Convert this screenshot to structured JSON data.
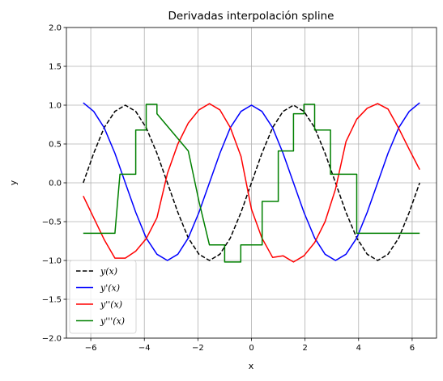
{
  "chart_data": {
    "type": "line",
    "title": "Derivadas interpolación spline",
    "xlabel": "x",
    "ylabel": "y",
    "xlim": [
      -6.91,
      6.91
    ],
    "ylim": [
      -2.0,
      2.0
    ],
    "xticks": [
      -6,
      -4,
      -2,
      0,
      2,
      4,
      6
    ],
    "xtick_labels": [
      "−6",
      "−4",
      "−2",
      "0",
      "2",
      "4",
      "6"
    ],
    "yticks": [
      -2.0,
      -1.5,
      -1.0,
      -0.5,
      0.0,
      0.5,
      1.0,
      1.5,
      2.0
    ],
    "ytick_labels": [
      "−2.0",
      "−1.5",
      "−1.0",
      "−0.5",
      "0.0",
      "0.5",
      "1.0",
      "1.5",
      "2.0"
    ],
    "grid": true,
    "legend_position": "lower-left",
    "series": [
      {
        "name": "y(x)",
        "color": "#000000",
        "dash": "dashed",
        "x": [
          -6.28,
          -5.89,
          -5.5,
          -5.1,
          -4.71,
          -4.32,
          -3.93,
          -3.53,
          -3.14,
          -2.75,
          -2.36,
          -1.96,
          -1.57,
          -1.18,
          -0.79,
          -0.39,
          0.0,
          0.39,
          0.79,
          1.18,
          1.57,
          1.96,
          2.36,
          2.75,
          3.14,
          3.53,
          3.93,
          4.32,
          4.71,
          5.1,
          5.5,
          5.89,
          6.28
        ],
        "y": [
          0.0,
          0.38,
          0.71,
          0.92,
          1.0,
          0.92,
          0.71,
          0.38,
          0.0,
          -0.38,
          -0.71,
          -0.92,
          -1.0,
          -0.92,
          -0.71,
          -0.38,
          0.0,
          0.38,
          0.71,
          0.92,
          1.0,
          0.92,
          0.71,
          0.38,
          0.0,
          -0.38,
          -0.71,
          -0.92,
          -1.0,
          -0.92,
          -0.71,
          -0.38,
          0.0
        ]
      },
      {
        "name": "y'(x)",
        "color": "#0000ff",
        "dash": "solid",
        "x": [
          -6.28,
          -5.89,
          -5.5,
          -5.1,
          -4.71,
          -4.32,
          -3.93,
          -3.53,
          -3.14,
          -2.75,
          -2.36,
          -1.96,
          -1.57,
          -1.18,
          -0.79,
          -0.39,
          0.0,
          0.39,
          0.79,
          1.18,
          1.57,
          1.96,
          2.36,
          2.75,
          3.14,
          3.53,
          3.93,
          4.32,
          4.71,
          5.1,
          5.5,
          5.89,
          6.28
        ],
        "y": [
          1.03,
          0.92,
          0.71,
          0.38,
          0.0,
          -0.38,
          -0.71,
          -0.92,
          -1.0,
          -0.92,
          -0.71,
          -0.38,
          0.0,
          0.38,
          0.71,
          0.92,
          1.0,
          0.92,
          0.71,
          0.38,
          0.0,
          -0.38,
          -0.71,
          -0.92,
          -1.0,
          -0.92,
          -0.71,
          -0.38,
          0.0,
          0.38,
          0.71,
          0.92,
          1.03
        ]
      },
      {
        "name": "y''(x)",
        "color": "#ff0000",
        "dash": "solid",
        "x": [
          -6.28,
          -5.89,
          -5.5,
          -5.1,
          -4.71,
          -4.32,
          -3.93,
          -3.53,
          -3.14,
          -2.75,
          -2.36,
          -1.96,
          -1.57,
          -1.18,
          -0.79,
          -0.39,
          0.0,
          0.39,
          0.79,
          1.18,
          1.57,
          1.96,
          2.36,
          2.75,
          3.14,
          3.53,
          3.93,
          4.32,
          4.71,
          5.1,
          5.5,
          5.89,
          6.28
        ],
        "y": [
          -0.17,
          -0.45,
          -0.73,
          -0.97,
          -0.97,
          -0.88,
          -0.72,
          -0.45,
          0.12,
          0.5,
          0.77,
          0.94,
          1.02,
          0.94,
          0.71,
          0.34,
          -0.34,
          -0.71,
          -0.96,
          -0.94,
          -1.02,
          -0.94,
          -0.77,
          -0.5,
          -0.08,
          0.53,
          0.82,
          0.96,
          1.02,
          0.95,
          0.7,
          0.43,
          0.17
        ]
      },
      {
        "name": "y'''(x)",
        "color": "#008000",
        "dash": "solid",
        "step": true,
        "x": [
          -6.28,
          -5.1,
          -5.1,
          -4.91,
          -4.91,
          -4.32,
          -4.32,
          -3.93,
          -3.93,
          -3.53,
          -3.53,
          -2.36,
          -2.36,
          -1.96,
          -1.96,
          -1.57,
          -1.57,
          -1.0,
          -1.0,
          -0.4,
          -0.4,
          0.4,
          0.4,
          1.0,
          1.0,
          1.57,
          1.57,
          1.96,
          1.96,
          2.36,
          2.36,
          2.95,
          2.95,
          3.93,
          3.93,
          4.32,
          4.32,
          4.91,
          4.91,
          5.1,
          5.1,
          6.28
        ],
        "y": [
          -0.65,
          -0.65,
          -0.65,
          0.11,
          0.11,
          0.11,
          0.68,
          0.68,
          1.01,
          1.01,
          0.89,
          0.41,
          0.41,
          -0.24,
          -0.24,
          -0.8,
          -0.8,
          -0.8,
          -1.02,
          -1.02,
          -0.8,
          -0.8,
          -0.24,
          -0.24,
          0.41,
          0.41,
          0.89,
          0.89,
          1.01,
          1.01,
          0.68,
          0.68,
          0.11,
          0.11,
          -0.65,
          -0.65,
          -0.65,
          -0.65,
          -0.65,
          -0.65,
          -0.65,
          -0.65
        ]
      }
    ]
  }
}
